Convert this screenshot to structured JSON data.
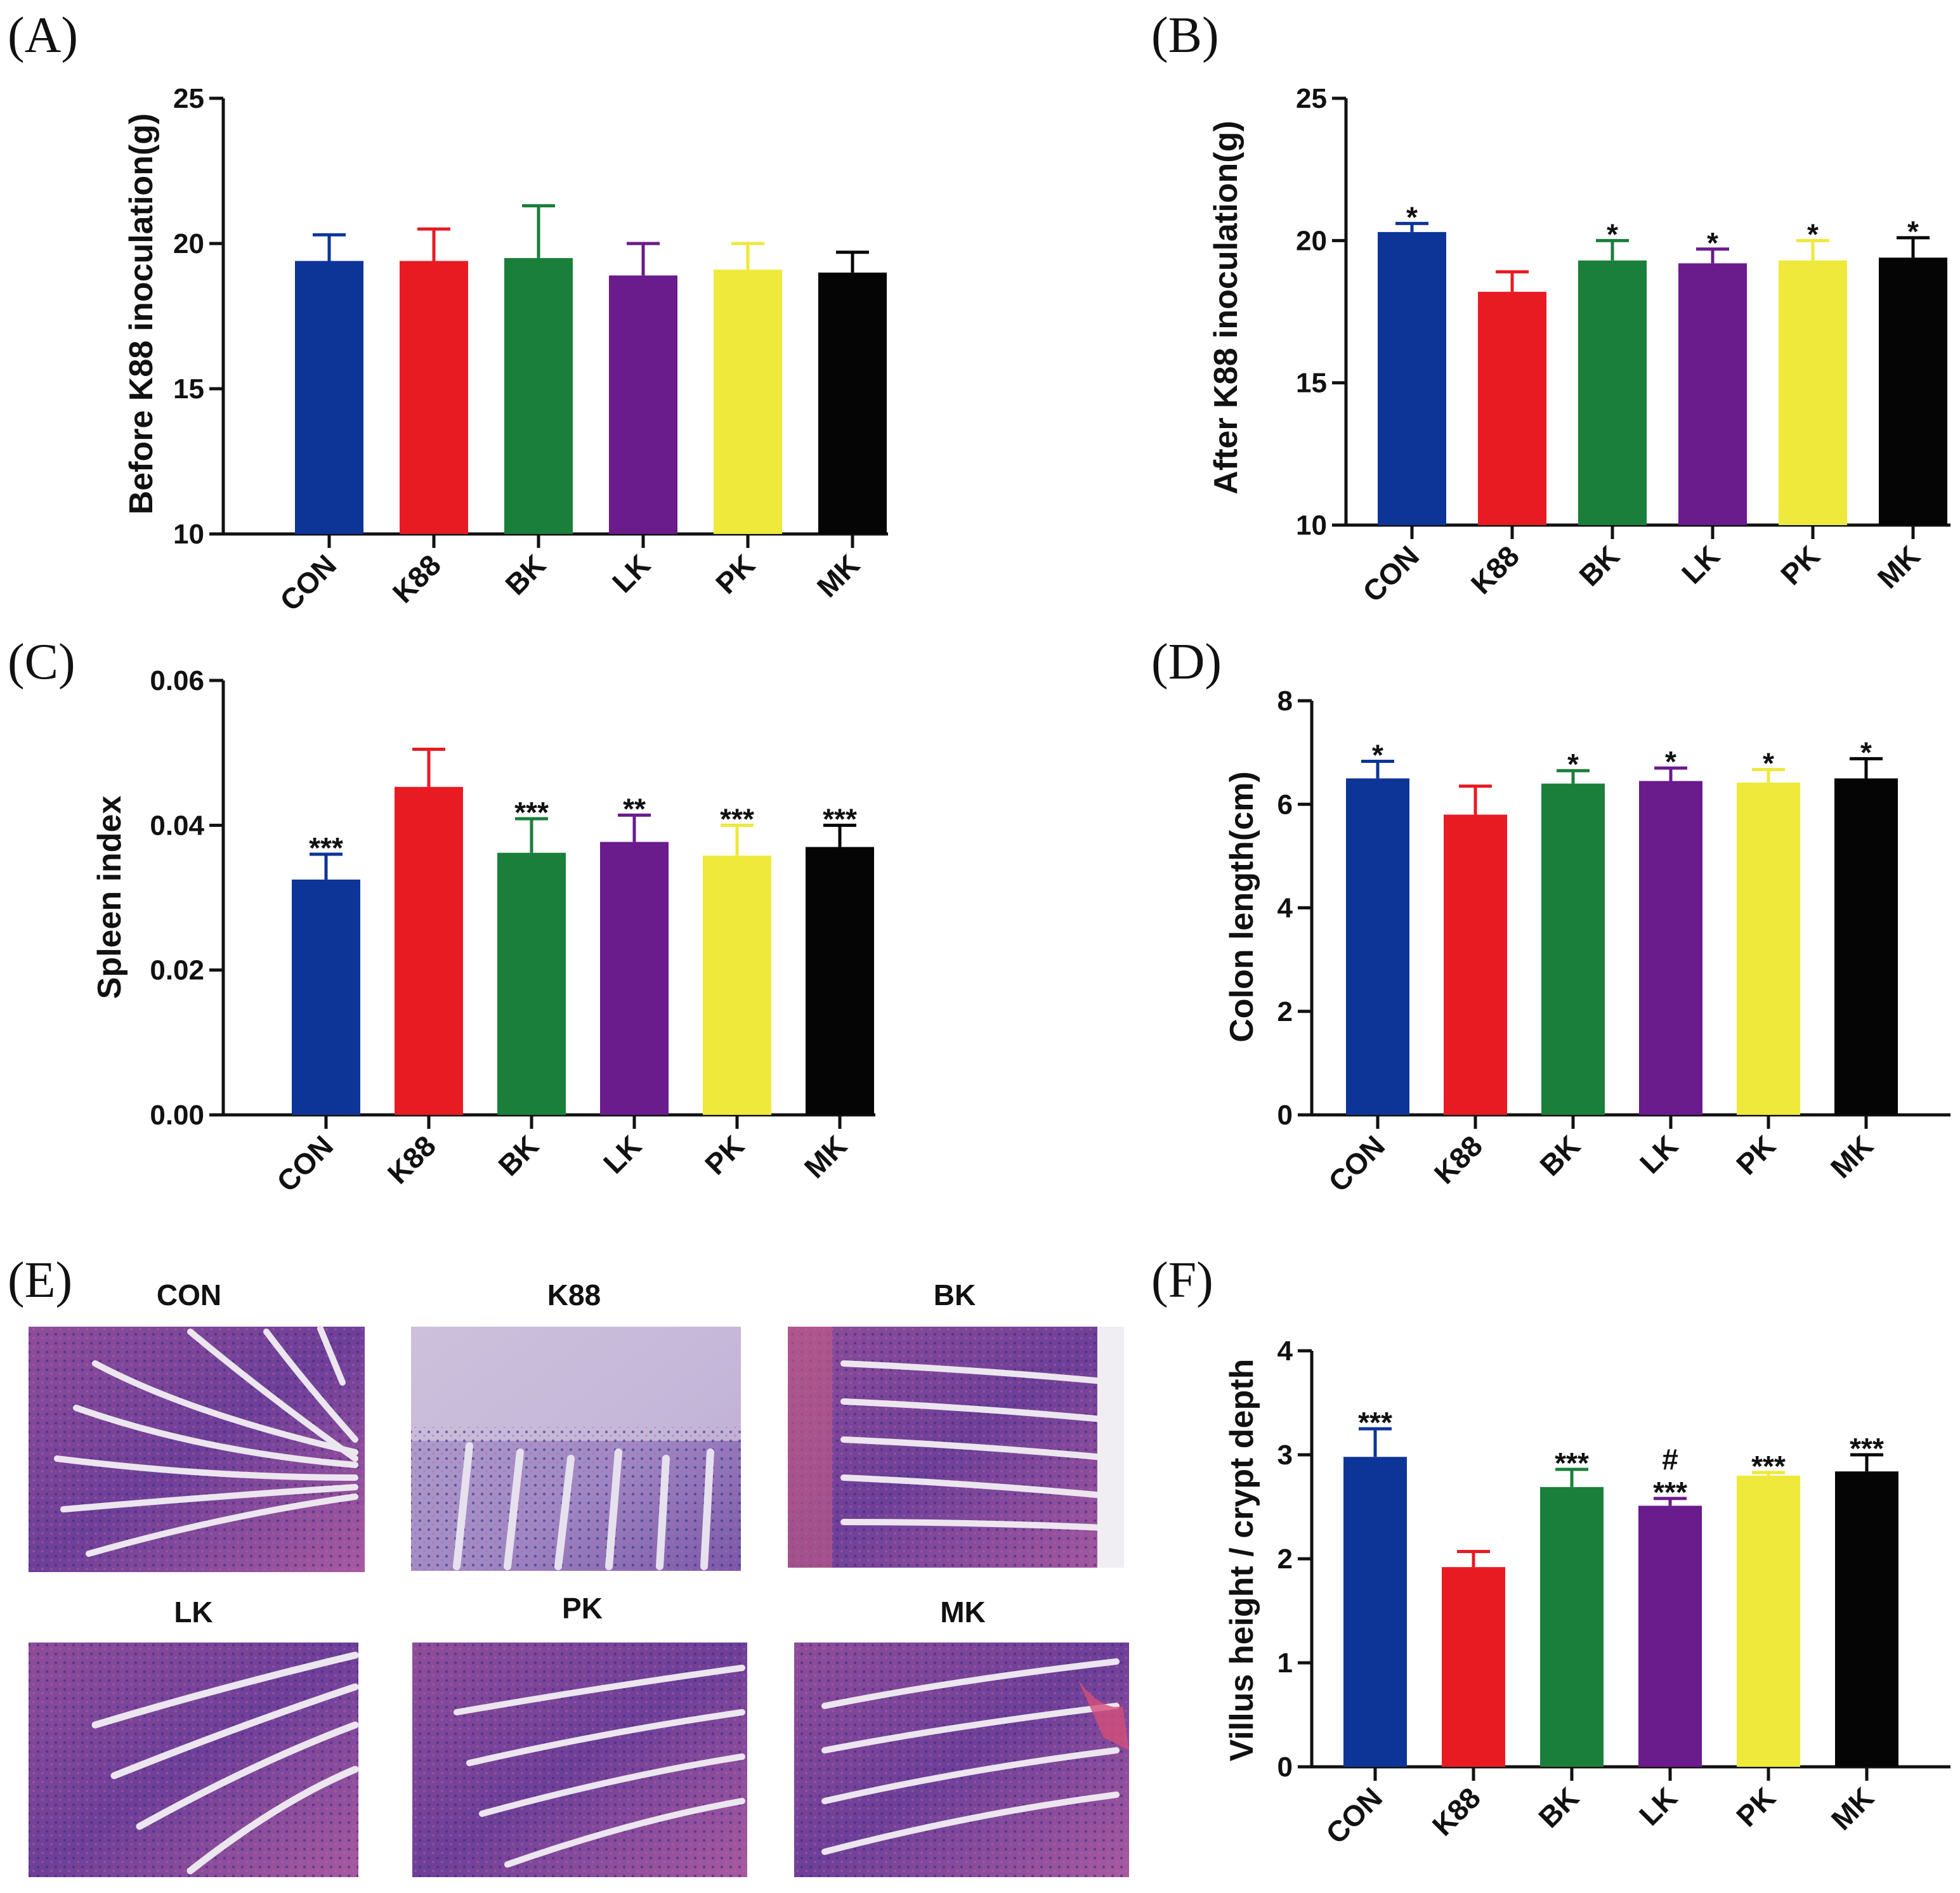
{
  "colors": {
    "CON": "#0d3598",
    "K88": "#e81b23",
    "BK": "#1a7f3a",
    "LK": "#6a1b8c",
    "PK": "#eee93a",
    "MK": "#050505"
  },
  "chart_data": [
    {
      "panel": "(A)",
      "type": "bar",
      "categories": [
        "CON",
        "K88",
        "BK",
        "LK",
        "PK",
        "MK"
      ],
      "values": [
        19.4,
        19.4,
        19.5,
        18.9,
        19.1,
        19.0
      ],
      "errors": [
        0.9,
        1.1,
        1.8,
        1.1,
        0.9,
        0.7
      ],
      "significance": [
        "",
        "",
        "",
        "",
        "",
        ""
      ],
      "ylabel": "Before K88 inoculation(g)",
      "ylim": [
        10,
        25
      ],
      "yticks": [
        10,
        15,
        20,
        25
      ],
      "ytick_labels": [
        "10",
        "15",
        "20",
        "25"
      ]
    },
    {
      "panel": "(B)",
      "type": "bar",
      "categories": [
        "CON",
        "K88",
        "BK",
        "LK",
        "PK",
        "MK"
      ],
      "values": [
        20.3,
        18.2,
        19.3,
        19.2,
        19.3,
        19.4
      ],
      "errors": [
        0.3,
        0.7,
        0.7,
        0.5,
        0.7,
        0.7
      ],
      "significance": [
        "*",
        "",
        "*",
        "*",
        "*",
        "*"
      ],
      "ylabel": "After K88 inoculation(g)",
      "ylim": [
        10,
        25
      ],
      "yticks": [
        10,
        15,
        20,
        25
      ],
      "ytick_labels": [
        "10",
        "15",
        "20",
        "25"
      ]
    },
    {
      "panel": "(C)",
      "type": "bar",
      "categories": [
        "CON",
        "K88",
        "BK",
        "LK",
        "PK",
        "MK"
      ],
      "values": [
        0.0325,
        0.0453,
        0.0362,
        0.0377,
        0.0358,
        0.037
      ],
      "errors": [
        0.0035,
        0.0052,
        0.0047,
        0.0037,
        0.0042,
        0.003
      ],
      "significance": [
        "***",
        "",
        "***",
        "**",
        "***",
        "***"
      ],
      "ylabel": "Spleen index",
      "ylim": [
        0,
        0.06
      ],
      "yticks": [
        0,
        0.02,
        0.04,
        0.06
      ],
      "ytick_labels": [
        "0.00",
        "0.02",
        "0.04",
        "0.06"
      ]
    },
    {
      "panel": "(D)",
      "type": "bar",
      "categories": [
        "CON",
        "K88",
        "BK",
        "LK",
        "PK",
        "MK"
      ],
      "values": [
        6.5,
        5.8,
        6.4,
        6.45,
        6.42,
        6.5
      ],
      "errors": [
        0.33,
        0.55,
        0.25,
        0.25,
        0.25,
        0.38
      ],
      "significance": [
        "*",
        "",
        "*",
        "*",
        "*",
        "*"
      ],
      "ylabel": "Colon length(cm)",
      "ylim": [
        0,
        8
      ],
      "yticks": [
        0,
        2,
        4,
        6,
        8
      ],
      "ytick_labels": [
        "0",
        "2",
        "4",
        "6",
        "8"
      ]
    },
    {
      "panel": "(F)",
      "type": "bar",
      "categories": [
        "CON",
        "K88",
        "BK",
        "LK",
        "PK",
        "MK"
      ],
      "values": [
        2.98,
        1.92,
        2.69,
        2.51,
        2.8,
        2.84
      ],
      "errors": [
        0.27,
        0.15,
        0.17,
        0.07,
        0.03,
        0.16
      ],
      "significance": [
        "***",
        "",
        "***",
        "#\n***",
        "***",
        "***"
      ],
      "ylabel": "Villus height / crypt depth",
      "ylim": [
        0,
        4
      ],
      "yticks": [
        0,
        1,
        2,
        3,
        4
      ],
      "ytick_labels": [
        "0",
        "1",
        "2",
        "3",
        "4"
      ]
    }
  ],
  "histology": {
    "panel": "(E)",
    "titles": [
      "CON",
      "K88",
      "BK",
      "LK",
      "PK",
      "MK"
    ]
  }
}
